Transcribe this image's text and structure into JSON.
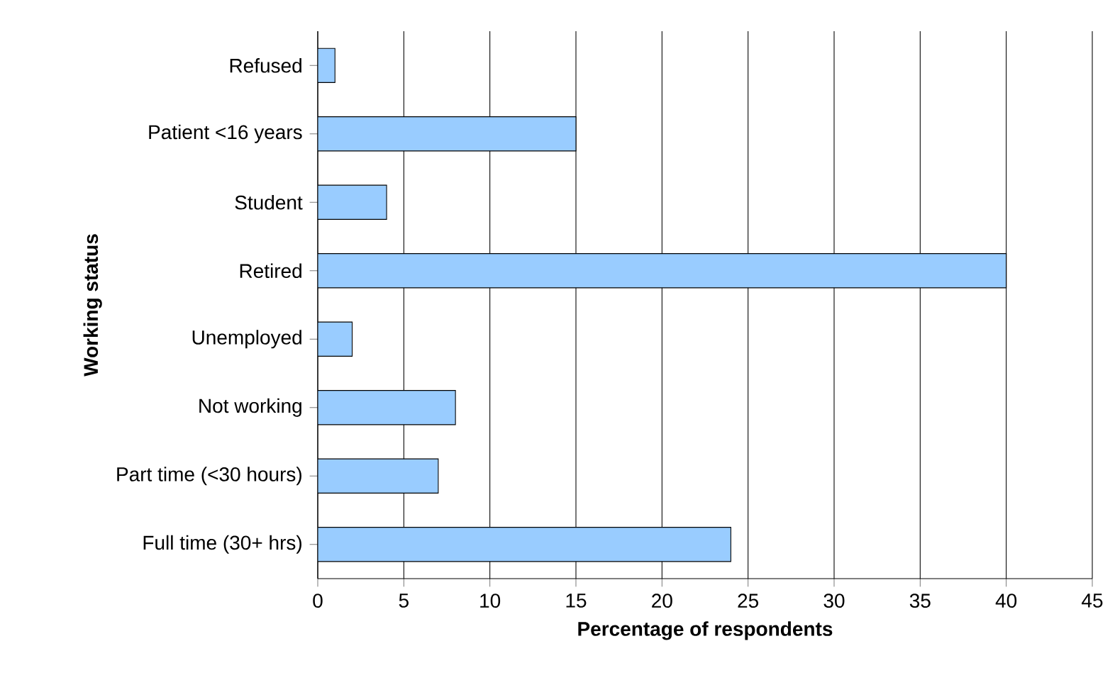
{
  "chart_data": {
    "type": "bar",
    "orientation": "horizontal",
    "xlabel": "Percentage of respondents",
    "ylabel": "Working status",
    "categories": [
      "Refused",
      "Patient <16 years",
      "Student",
      "Retired",
      "Unemployed",
      "Not working",
      "Part time (<30 hours)",
      "Full time (30+ hrs)"
    ],
    "values": [
      1,
      15,
      4,
      40,
      2,
      8,
      7,
      24
    ],
    "color": "#99ccff",
    "xlim": [
      0,
      45
    ],
    "xticks": [
      0,
      5,
      10,
      15,
      20,
      25,
      30,
      35,
      40,
      45
    ],
    "grid": "x"
  }
}
